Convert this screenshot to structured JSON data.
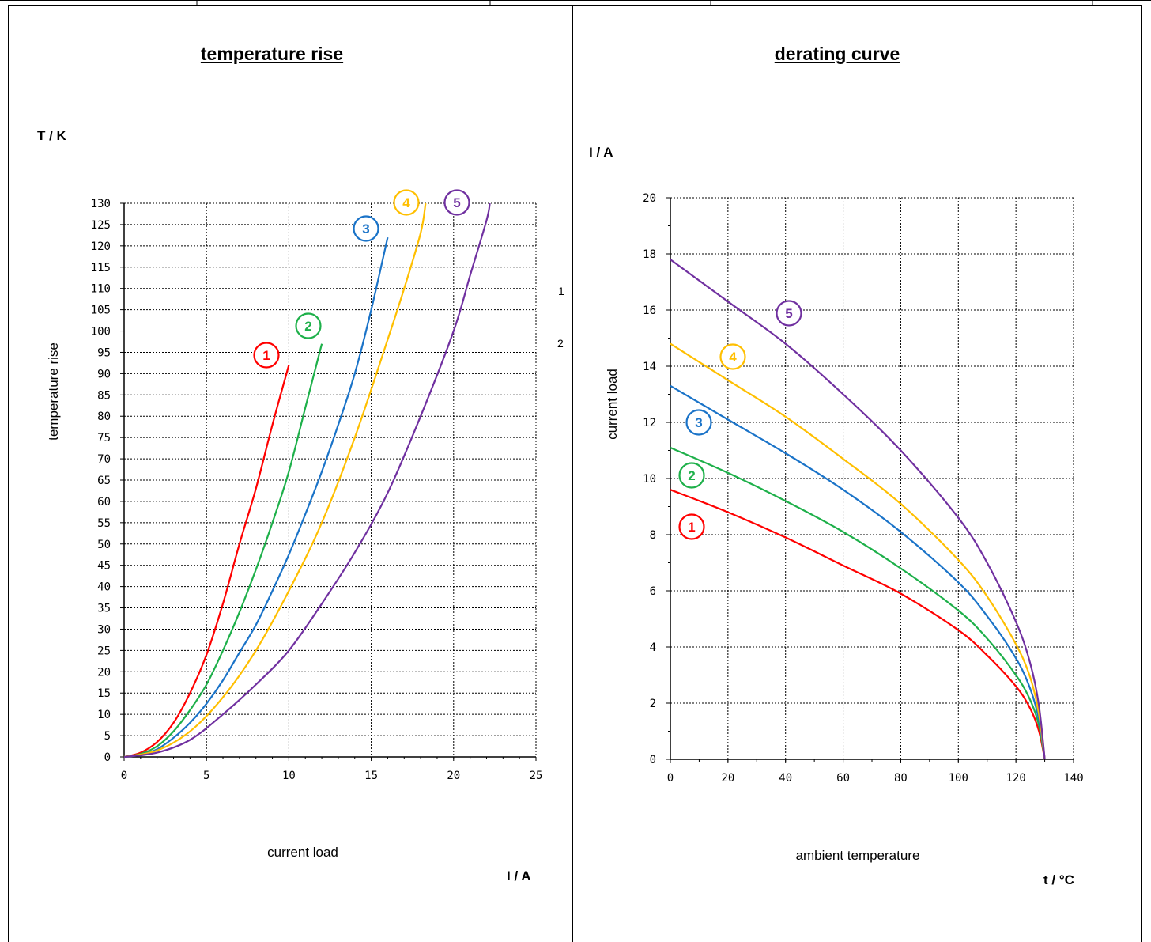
{
  "left_panel": {
    "title": "temperature rise",
    "y_unit": "T / K",
    "x_unit": "I / A",
    "side_labels": [
      "1",
      "2"
    ]
  },
  "right_panel": {
    "title": "derating curve",
    "y_unit": "I / A",
    "x_unit": "t / °C"
  },
  "series_colors": {
    "1": "#ff0000",
    "2": "#1eb04a",
    "3": "#1a73c8",
    "4": "#ffbf00",
    "5": "#7030a0"
  },
  "chart_data": [
    {
      "id": "temperature-rise",
      "type": "line",
      "title": "temperature rise",
      "xlabel": "current load",
      "ylabel": "temperature rise",
      "xlim": [
        0,
        25
      ],
      "ylim": [
        0,
        130
      ],
      "xticks": [
        0,
        5,
        10,
        15,
        20,
        25
      ],
      "yticks": [
        0,
        5,
        10,
        15,
        20,
        25,
        30,
        35,
        40,
        45,
        50,
        55,
        60,
        65,
        70,
        75,
        80,
        85,
        90,
        95,
        100,
        105,
        110,
        115,
        120,
        125,
        130
      ],
      "grid": true,
      "series": [
        {
          "name": "1",
          "color": "#ff0000",
          "x": [
            0,
            1,
            2,
            3,
            4,
            5,
            6,
            7,
            8,
            9,
            10
          ],
          "y": [
            0,
            1,
            3.5,
            8,
            15,
            24,
            36,
            50,
            63,
            78,
            92
          ]
        },
        {
          "name": "2",
          "color": "#1eb04a",
          "x": [
            0,
            1,
            2,
            3,
            4,
            5,
            6,
            7,
            8,
            9,
            10,
            11,
            12
          ],
          "y": [
            0,
            0.7,
            2.5,
            6,
            11,
            17,
            25,
            34,
            44,
            55,
            67,
            82,
            97
          ]
        },
        {
          "name": "3",
          "color": "#1a73c8",
          "x": [
            0,
            1,
            2,
            3,
            4,
            5,
            6,
            7,
            8,
            9,
            10,
            11,
            12,
            13,
            14,
            15,
            16
          ],
          "y": [
            0,
            0.5,
            1.8,
            4.5,
            8,
            12.5,
            18,
            24.5,
            31,
            39,
            47.5,
            57,
            67,
            78,
            90,
            105,
            122
          ]
        },
        {
          "name": "4",
          "color": "#ffbf00",
          "x": [
            0,
            2,
            4,
            6,
            8,
            10,
            12,
            14,
            16,
            17,
            18,
            18.3
          ],
          "y": [
            0,
            1.5,
            6,
            14,
            25,
            39,
            55,
            75,
            98,
            110,
            123,
            130
          ]
        },
        {
          "name": "5",
          "color": "#7030a0",
          "x": [
            0,
            2,
            4,
            6,
            8,
            10,
            12,
            14,
            16,
            18,
            20,
            21,
            22,
            22.2
          ],
          "y": [
            0,
            1,
            4,
            10,
            17,
            25,
            36,
            48,
            62,
            80,
            100,
            113,
            126,
            130
          ]
        }
      ]
    },
    {
      "id": "derating-curve",
      "type": "line",
      "title": "derating curve",
      "xlabel": "ambient temperature",
      "ylabel": "current load",
      "xlim": [
        0,
        140
      ],
      "ylim": [
        0,
        20
      ],
      "xticks": [
        0,
        20,
        40,
        60,
        80,
        100,
        120,
        140
      ],
      "yticks": [
        0,
        2,
        4,
        6,
        8,
        10,
        12,
        14,
        16,
        18,
        20
      ],
      "grid": true,
      "series": [
        {
          "name": "1",
          "color": "#ff0000",
          "x": [
            0,
            20,
            40,
            60,
            80,
            100,
            110,
            120,
            125,
            128,
            130
          ],
          "y": [
            9.6,
            8.8,
            7.9,
            6.9,
            5.9,
            4.6,
            3.7,
            2.6,
            1.8,
            1.0,
            0
          ]
        },
        {
          "name": "2",
          "color": "#1eb04a",
          "x": [
            0,
            20,
            40,
            60,
            80,
            100,
            110,
            120,
            125,
            128,
            130
          ],
          "y": [
            11.1,
            10.2,
            9.2,
            8.1,
            6.8,
            5.3,
            4.3,
            3.0,
            2.1,
            1.2,
            0
          ]
        },
        {
          "name": "3",
          "color": "#1a73c8",
          "x": [
            0,
            20,
            40,
            60,
            80,
            100,
            110,
            120,
            125,
            128,
            130
          ],
          "y": [
            13.3,
            12.1,
            10.9,
            9.6,
            8.1,
            6.3,
            5.1,
            3.6,
            2.5,
            1.4,
            0
          ]
        },
        {
          "name": "4",
          "color": "#ffbf00",
          "x": [
            0,
            20,
            40,
            60,
            80,
            100,
            110,
            120,
            125,
            128,
            130
          ],
          "y": [
            14.8,
            13.5,
            12.2,
            10.7,
            9.1,
            7.1,
            5.8,
            4.1,
            2.9,
            1.6,
            0
          ]
        },
        {
          "name": "5",
          "color": "#7030a0",
          "x": [
            0,
            20,
            40,
            60,
            80,
            100,
            110,
            120,
            125,
            128,
            130
          ],
          "y": [
            17.8,
            16.3,
            14.8,
            13.0,
            11.0,
            8.6,
            7.0,
            4.9,
            3.4,
            1.9,
            0
          ]
        }
      ]
    }
  ]
}
